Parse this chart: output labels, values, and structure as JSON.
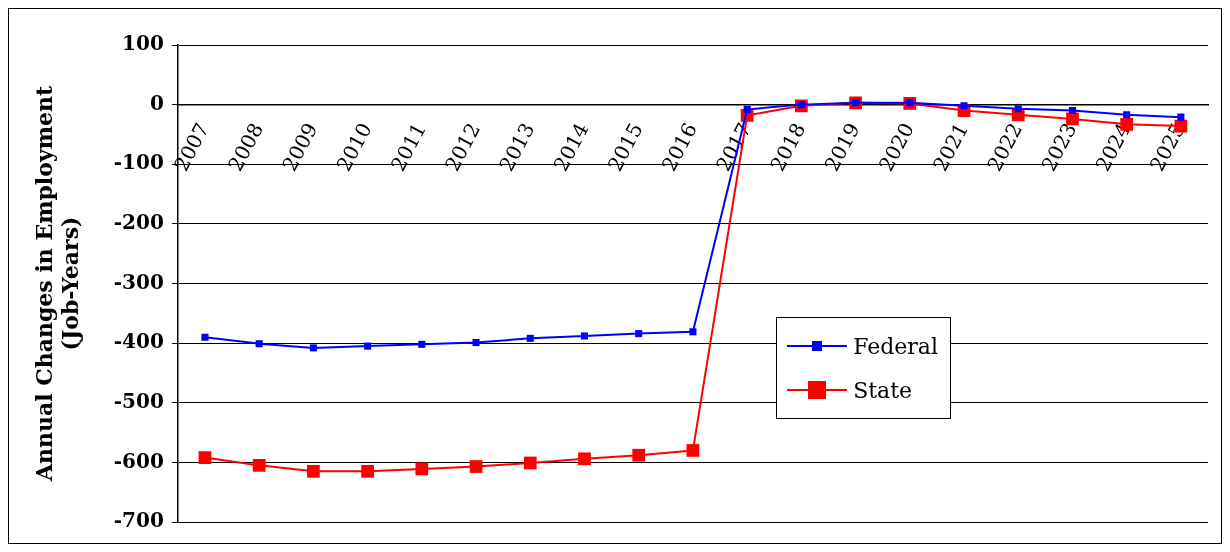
{
  "chart_data": {
    "type": "line",
    "ylabel": "Annual Changes in Employment\n(Job-Years)",
    "categories": [
      "2007",
      "2008",
      "2009",
      "2010",
      "2011",
      "2012",
      "2013",
      "2014",
      "2015",
      "2016",
      "2017",
      "2018",
      "2019",
      "2020",
      "2021",
      "2022",
      "2023",
      "2024",
      "2025"
    ],
    "series": [
      {
        "name": "Federal",
        "color": "#0000ff",
        "values": [
          -390,
          -401,
          -408,
          -405,
          -402,
          -399,
          -392,
          -388,
          -384,
          -381,
          -8,
          0,
          3,
          3,
          -2,
          -7,
          -10,
          -17,
          -21
        ]
      },
      {
        "name": "State",
        "color": "#ff0000",
        "values": [
          -592,
          -605,
          -615,
          -615,
          -611,
          -607,
          -601,
          -594,
          -588,
          -580,
          -18,
          -2,
          3,
          2,
          -10,
          -17,
          -24,
          -33,
          -36
        ]
      }
    ],
    "ylim": [
      -700,
      100
    ],
    "yticks": [
      -700,
      -600,
      -500,
      -400,
      -300,
      -200,
      -100,
      0,
      100
    ],
    "grid": "y",
    "legend": "right",
    "marker": "square",
    "line_style": "solid"
  }
}
